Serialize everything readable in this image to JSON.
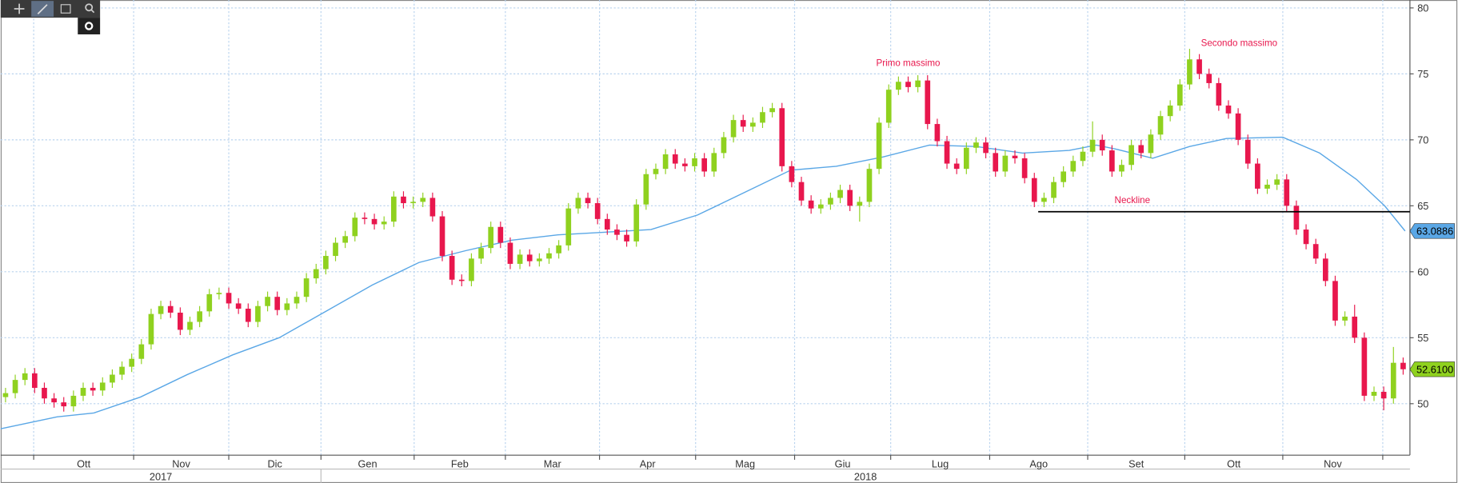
{
  "chart_data": {
    "type": "candlestick",
    "xlim": [
      -0.5,
      144.7
    ],
    "ylim": [
      46.1,
      80.6
    ],
    "yticks": [
      50,
      55,
      60,
      65,
      70,
      75,
      80
    ],
    "grid": true,
    "months": [
      "Ott",
      "Nov",
      "Dic",
      "Gen",
      "Feb",
      "Mar",
      "Apr",
      "Mag",
      "Giu",
      "Lug",
      "Ago",
      "Set",
      "Ott",
      "Nov"
    ],
    "xticks": [
      2.9,
      13.2,
      23.0,
      32.5,
      42.1,
      51.5,
      61.2,
      71.1,
      81.3,
      91.2,
      101.4,
      111.5,
      121.5,
      131.6,
      141.9
    ],
    "years": [
      "2017",
      "2018"
    ],
    "year_boundary": 32.5,
    "up_color": "#8fd11f",
    "down_color": "#e8174d",
    "x": [
      0,
      1,
      2,
      3,
      4,
      5,
      6,
      7,
      8,
      9,
      10,
      11,
      12,
      13,
      14,
      15,
      16,
      17,
      18,
      19,
      20,
      21,
      22,
      23,
      24,
      25,
      26,
      27,
      28,
      29,
      30,
      31,
      32,
      33,
      34,
      35,
      36,
      37,
      38,
      39,
      40,
      41,
      42,
      43,
      44,
      45,
      46,
      47,
      48,
      49,
      50,
      51,
      52,
      53,
      54,
      55,
      56,
      57,
      58,
      59,
      60,
      61,
      62,
      63,
      64,
      65,
      66,
      67,
      68,
      69,
      70,
      71,
      72,
      73,
      74,
      75,
      76,
      77,
      78,
      79,
      80,
      81,
      82,
      83,
      84,
      85,
      86,
      87,
      88,
      89,
      90,
      91,
      92,
      93,
      94,
      95,
      96,
      97,
      98,
      99,
      100,
      101,
      102,
      103,
      104,
      105,
      106,
      107,
      108,
      109,
      110,
      111,
      112,
      113,
      114,
      115,
      116,
      117,
      118,
      119,
      120,
      121,
      122,
      123,
      124,
      125,
      126,
      127,
      128,
      129,
      130,
      131,
      132,
      133,
      134,
      135,
      136,
      137,
      138,
      139,
      140,
      141,
      142,
      143,
      144
    ],
    "open": [
      50.5,
      50.8,
      51.8,
      52.3,
      51.2,
      50.4,
      50.1,
      49.8,
      50.6,
      51.2,
      51.0,
      51.6,
      52.2,
      52.8,
      53.4,
      54.5,
      56.8,
      57.4,
      56.9,
      55.6,
      56.2,
      57.0,
      58.3,
      58.4,
      57.6,
      57.2,
      56.2,
      57.4,
      58.1,
      57.1,
      57.6,
      58.1,
      59.5,
      60.2,
      61.2,
      62.2,
      62.7,
      64.1,
      64.0,
      63.6,
      63.8,
      65.7,
      65.2,
      65.3,
      65.6,
      64.2,
      61.2,
      59.4,
      59.3,
      61.0,
      61.8,
      63.4,
      62.2,
      60.6,
      61.3,
      60.8,
      61.0,
      61.4,
      62.0,
      64.8,
      65.6,
      65.2,
      64.0,
      63.2,
      62.8,
      62.3,
      65.1,
      67.4,
      67.8,
      68.9,
      68.2,
      68.0,
      68.6,
      67.6,
      69.0,
      70.2,
      71.5,
      71.0,
      71.3,
      72.1,
      72.4,
      68.0,
      66.8,
      65.4,
      64.8,
      65.1,
      65.6,
      66.2,
      65.0,
      65.3,
      67.8,
      71.3,
      73.8,
      74.4,
      74.0,
      74.5,
      71.2,
      69.9,
      68.2,
      67.8,
      69.4,
      69.8,
      69.0,
      67.6,
      68.8,
      68.6,
      67.1,
      65.3,
      65.6,
      66.8,
      67.6,
      68.4,
      69.1,
      70.0,
      69.2,
      67.6,
      68.1,
      69.6,
      69.0,
      70.4,
      71.8,
      72.6,
      74.2,
      76.1,
      75.0,
      74.3,
      72.6,
      72.0,
      70.0,
      68.2,
      66.3,
      66.6,
      67.0,
      65.0,
      63.2,
      62.1,
      61.0,
      59.3,
      56.3,
      56.6,
      55.0,
      50.6,
      50.9,
      50.4,
      53.1
    ],
    "high": [
      51.2,
      52.2,
      52.7,
      52.7,
      51.6,
      50.8,
      50.5,
      51.0,
      51.6,
      51.6,
      52.0,
      52.6,
      53.2,
      53.8,
      54.9,
      57.2,
      57.8,
      57.8,
      57.3,
      56.6,
      57.4,
      58.7,
      58.8,
      58.8,
      58.0,
      57.6,
      57.8,
      58.5,
      58.5,
      58.0,
      58.5,
      59.9,
      60.6,
      61.6,
      62.6,
      63.1,
      64.5,
      64.5,
      64.4,
      64.2,
      66.1,
      66.1,
      65.7,
      66.0,
      66.0,
      64.6,
      61.6,
      59.8,
      61.4,
      62.2,
      63.8,
      63.8,
      62.6,
      61.7,
      61.7,
      61.4,
      61.8,
      62.4,
      65.2,
      66.0,
      66.0,
      65.6,
      64.4,
      63.6,
      63.2,
      65.5,
      67.8,
      68.2,
      69.3,
      69.3,
      68.6,
      69.0,
      69.0,
      69.4,
      70.6,
      71.9,
      71.9,
      71.7,
      72.5,
      72.8,
      72.8,
      68.4,
      67.2,
      65.8,
      65.5,
      66.0,
      66.6,
      66.6,
      65.7,
      68.2,
      71.7,
      74.2,
      74.8,
      74.8,
      74.9,
      74.9,
      71.6,
      70.3,
      68.6,
      69.8,
      70.2,
      70.2,
      69.4,
      69.2,
      69.2,
      69.0,
      67.5,
      66.0,
      67.2,
      68.0,
      68.8,
      69.5,
      71.4,
      70.4,
      69.6,
      68.5,
      70.0,
      70.0,
      70.8,
      72.2,
      73.0,
      74.6,
      76.9,
      76.5,
      75.4,
      74.7,
      73.0,
      72.4,
      70.4,
      68.6,
      67.0,
      67.4,
      67.4,
      65.4,
      63.6,
      62.5,
      61.4,
      59.7,
      57.0,
      57.5,
      55.4,
      51.3,
      51.3,
      54.3,
      53.5
    ],
    "low": [
      50.1,
      50.4,
      51.4,
      50.8,
      50.0,
      49.7,
      49.4,
      49.4,
      50.2,
      50.6,
      50.6,
      51.2,
      51.8,
      52.4,
      53.0,
      54.1,
      56.4,
      56.5,
      55.2,
      55.2,
      55.8,
      56.6,
      57.9,
      57.2,
      56.8,
      55.8,
      55.8,
      57.0,
      56.7,
      56.7,
      57.2,
      57.7,
      59.1,
      59.8,
      60.8,
      61.8,
      62.3,
      63.6,
      63.2,
      63.2,
      63.4,
      64.8,
      64.8,
      64.9,
      63.8,
      60.8,
      59.0,
      58.9,
      58.9,
      60.6,
      61.4,
      61.8,
      60.2,
      60.2,
      60.4,
      60.4,
      60.6,
      61.0,
      61.6,
      64.4,
      64.8,
      63.6,
      62.8,
      62.4,
      61.9,
      61.9,
      64.7,
      67.0,
      67.4,
      67.8,
      67.6,
      67.6,
      67.2,
      67.2,
      68.6,
      69.8,
      70.6,
      70.6,
      70.9,
      71.7,
      67.6,
      66.4,
      65.0,
      64.4,
      64.4,
      64.7,
      65.2,
      64.6,
      63.8,
      64.9,
      67.4,
      70.9,
      73.4,
      73.6,
      73.6,
      70.8,
      69.5,
      67.8,
      67.4,
      67.4,
      69.0,
      68.6,
      67.2,
      67.2,
      68.2,
      66.7,
      64.9,
      64.9,
      65.2,
      66.4,
      67.2,
      68.0,
      68.7,
      68.8,
      67.2,
      67.2,
      67.7,
      68.6,
      68.6,
      70.0,
      71.4,
      72.2,
      73.8,
      74.6,
      73.9,
      72.2,
      71.6,
      69.6,
      67.8,
      65.9,
      65.9,
      66.2,
      64.6,
      62.8,
      61.7,
      60.6,
      58.9,
      55.9,
      55.9,
      54.6,
      50.2,
      50.2,
      49.5,
      50.0,
      52.2
    ],
    "close": [
      50.8,
      51.8,
      52.3,
      51.2,
      50.4,
      50.1,
      49.8,
      50.6,
      51.2,
      51.0,
      51.6,
      52.2,
      52.8,
      53.4,
      54.5,
      56.8,
      57.4,
      56.9,
      55.6,
      56.2,
      57.0,
      58.3,
      58.4,
      57.6,
      57.2,
      56.2,
      57.4,
      58.1,
      57.1,
      57.6,
      58.1,
      59.5,
      60.2,
      61.2,
      62.2,
      62.7,
      64.1,
      64.0,
      63.6,
      63.8,
      65.7,
      65.2,
      65.3,
      65.6,
      64.2,
      61.2,
      59.4,
      59.3,
      61.0,
      61.8,
      63.4,
      62.2,
      60.6,
      61.3,
      60.8,
      61.0,
      61.4,
      62.0,
      64.8,
      65.6,
      65.2,
      64.0,
      63.2,
      62.8,
      62.3,
      65.1,
      67.4,
      67.8,
      68.9,
      68.2,
      68.0,
      68.6,
      67.6,
      69.0,
      70.2,
      71.5,
      71.0,
      71.3,
      72.1,
      72.4,
      68.0,
      66.8,
      65.4,
      64.8,
      65.1,
      65.6,
      66.2,
      65.0,
      65.3,
      67.8,
      71.3,
      73.8,
      74.4,
      74.0,
      74.5,
      71.2,
      69.9,
      68.2,
      67.8,
      69.4,
      69.8,
      69.0,
      67.6,
      68.8,
      68.6,
      67.1,
      65.3,
      65.6,
      66.8,
      67.6,
      68.4,
      69.1,
      70.0,
      69.2,
      67.6,
      68.1,
      69.6,
      69.0,
      70.4,
      71.8,
      72.6,
      74.2,
      76.1,
      75.0,
      74.3,
      72.6,
      72.0,
      70.0,
      68.2,
      66.3,
      66.6,
      67.0,
      65.0,
      63.2,
      62.1,
      61.0,
      59.3,
      56.3,
      56.6,
      55.0,
      50.6,
      50.9,
      50.4,
      53.1,
      52.61
    ],
    "moving_average": {
      "color": "#5aa7e6",
      "x": [
        -0.5,
        5.3,
        9.1,
        13.9,
        18.7,
        23.4,
        28.2,
        33.0,
        37.8,
        42.6,
        47.4,
        52.2,
        56.9,
        61.7,
        66.5,
        71.3,
        76.1,
        80.9,
        85.6,
        90.4,
        95.2,
        100.0,
        104.8,
        109.6,
        112.4,
        114.4,
        118.2,
        122.0,
        125.8,
        131.6,
        135.4,
        139.2,
        142.1,
        144.2
      ],
      "values": [
        48.1,
        49.0,
        49.3,
        50.5,
        52.2,
        53.7,
        55.0,
        57.0,
        59.0,
        60.7,
        61.6,
        62.4,
        62.8,
        63.0,
        63.2,
        64.3,
        66.0,
        67.7,
        68.0,
        68.7,
        69.6,
        69.5,
        69.0,
        69.2,
        69.6,
        69.3,
        68.6,
        69.5,
        70.1,
        70.2,
        69.0,
        67.0,
        65.0,
        63.0886
      ]
    },
    "last_labels": [
      {
        "value": 63.0886,
        "label": "63.0886",
        "color": "#5aa7e6"
      },
      {
        "value": 52.61,
        "label": "52.6100",
        "color": "#8fd11f"
      }
    ],
    "neckline": {
      "x": [
        106.4,
        144.7
      ],
      "value": 64.55,
      "color": "#000000"
    },
    "annotations": [
      {
        "text": "Primo massimo",
        "x": 93.0,
        "y": 75.6
      },
      {
        "text": "Secondo massimo",
        "x": 127.1,
        "y": 77.1
      },
      {
        "text": "Neckline",
        "x": 116.1,
        "y": 65.2
      }
    ],
    "annotation_color": "#e8174d"
  }
}
